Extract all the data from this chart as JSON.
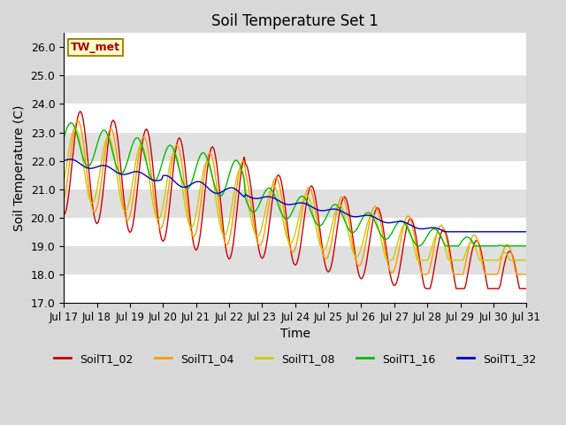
{
  "title": "Soil Temperature Set 1",
  "xlabel": "Time",
  "ylabel": "Soil Temperature (C)",
  "ylim": [
    17.0,
    26.5
  ],
  "xlim_days": 14,
  "yticks": [
    17.0,
    18.0,
    19.0,
    20.0,
    21.0,
    22.0,
    23.0,
    24.0,
    25.0,
    26.0
  ],
  "xtick_positions": [
    0,
    1,
    2,
    3,
    4,
    5,
    6,
    7,
    8,
    9,
    10,
    11,
    12,
    13,
    14
  ],
  "xtick_labels": [
    "Jul 17",
    "Jul 18",
    "Jul 19",
    "Jul 20",
    "Jul 21",
    "Jul 22",
    "Jul 23",
    "Jul 24",
    "Jul 25",
    "Jul 26",
    "Jul 27",
    "Jul 28",
    "Jul 29",
    "Jul 30",
    "Jul 31"
  ],
  "fig_bg_color": "#d8d8d8",
  "plot_bg_color": "#d8d8d8",
  "band_colors": [
    "#ffffff",
    "#e0e0e0"
  ],
  "grid_color": "#ffffff",
  "annotation_text": "TW_met",
  "annotation_bg": "#ffffcc",
  "annotation_border": "#aa8800",
  "annotation_text_color": "#aa0000",
  "series_colors": [
    "#cc0000",
    "#ff9900",
    "#cccc00",
    "#00bb00",
    "#0000cc"
  ],
  "legend_labels": [
    "SoilT1_02",
    "SoilT1_04",
    "SoilT1_08",
    "SoilT1_16",
    "SoilT1_32"
  ],
  "linewidth": 1.0
}
